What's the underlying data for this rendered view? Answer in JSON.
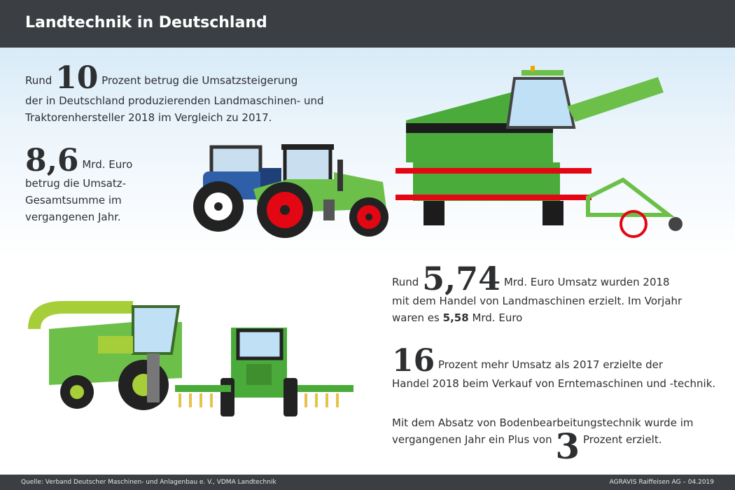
{
  "header": {
    "title": "Landtechnik in Deutschland"
  },
  "facts": {
    "f1": {
      "prefix": "Rund",
      "number": "10",
      "line1": "Prozent betrug die Umsatzsteigerung",
      "line2": "der in Deutschland produzierenden Landmaschinen- und",
      "line3": "Traktorenhersteller 2018 im Vergleich zu 2017."
    },
    "f2": {
      "number": "8,6",
      "line1": "Mrd. Euro",
      "line2": "betrug die Umsatz-",
      "line3": "Gesamtsumme im",
      "line4": "vergangenen Jahr."
    },
    "f3": {
      "prefix": "Rund",
      "number": "5,74",
      "line1": "Mrd. Euro Umsatz wurden 2018",
      "line2": "mit dem Handel von Landmaschinen erzielt. Im Vorjahr",
      "line3a": "waren es",
      "value": "5,58",
      "line3b": "Mrd. Euro"
    },
    "f4": {
      "number": "16",
      "line1": "Prozent mehr Umsatz als 2017 erzielte der",
      "line2": "Handel 2018 beim Verkauf von Erntemaschinen und -technik."
    },
    "f5": {
      "line1": "Mit dem Absatz von Bodenbearbeitungstechnik wurde im",
      "line2a": "vergangenen Jahr ein Plus von",
      "number": "3",
      "line2b": "Prozent erzielt."
    }
  },
  "footer": {
    "source": "Quelle:  Verband Deutscher Maschinen- und Anlagenbau e. V., VDMA Landtechnik",
    "credit": "AGRAVIS Raiffeisen AG – 04.2019"
  },
  "colors": {
    "header": "#3b3f43",
    "green": "#6cc04a",
    "dark_green": "#3f8f2f",
    "red": "#e30613",
    "blue": "#2f5fa8"
  }
}
